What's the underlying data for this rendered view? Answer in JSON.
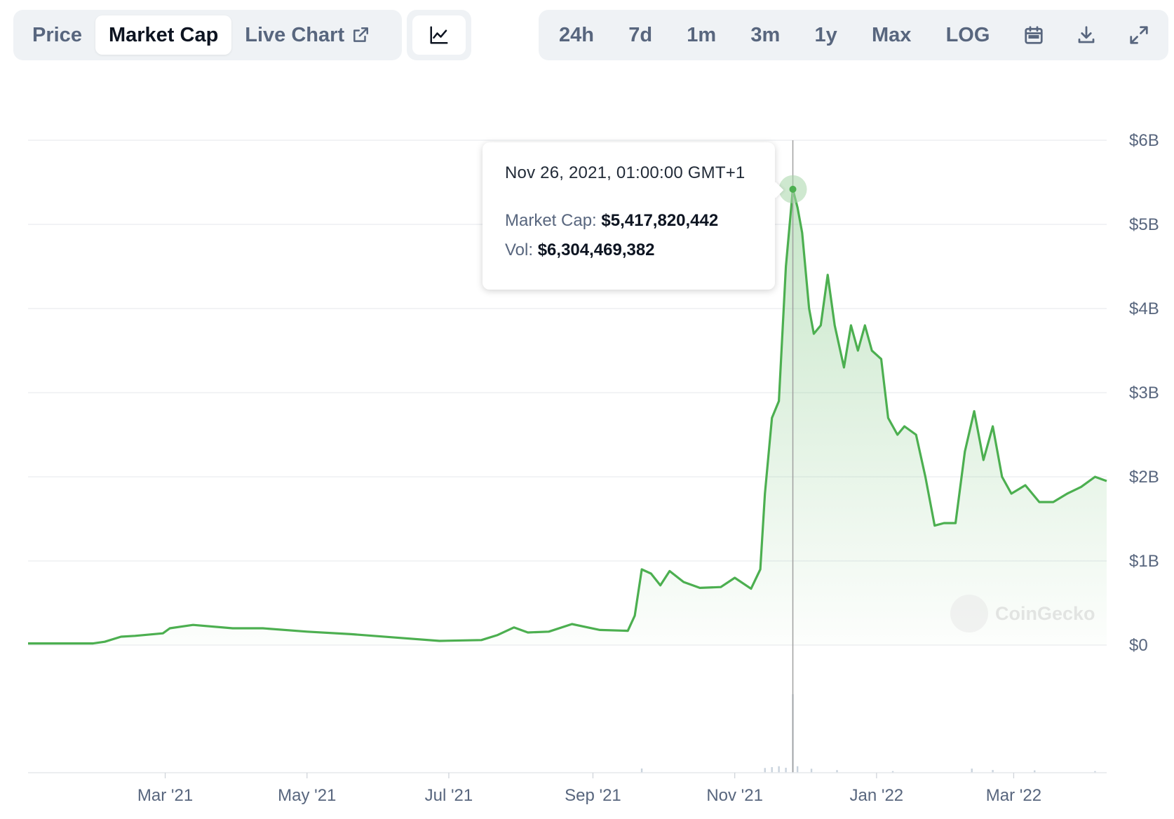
{
  "toolbar": {
    "left_tabs": [
      "Price",
      "Market Cap",
      "Live Chart"
    ],
    "active_tab": "Market Cap",
    "chart_type_icon": "line-chart-icon",
    "external_icon": "external-link-icon",
    "ranges": [
      "24h",
      "7d",
      "1m",
      "3m",
      "1y",
      "Max",
      "LOG"
    ],
    "icons": [
      "calendar-icon",
      "download-icon",
      "expand-icon"
    ]
  },
  "tooltip": {
    "date": "Nov 26, 2021, 01:00:00 GMT+1",
    "market_cap_label": "Market Cap:",
    "market_cap_value": "$5,417,820,442",
    "vol_label": "Vol:",
    "vol_value": "$6,304,469,382"
  },
  "watermark": "CoinGecko",
  "colors": {
    "line": "#4caf50",
    "fill": "#c8e6c9",
    "grid": "#e9ecef",
    "axis_text": "#58667e"
  },
  "chart_data": {
    "type": "area",
    "title": "",
    "xlabel": "",
    "ylabel": "",
    "ylim": [
      0,
      6000000000
    ],
    "xlim": [
      "2021-01-01",
      "2022-04-10"
    ],
    "y_ticks": [
      "$0",
      "$1B",
      "$2B",
      "$3B",
      "$4B",
      "$5B",
      "$6B"
    ],
    "x_ticks": [
      {
        "date": "2021-03-01",
        "label": "Mar '21"
      },
      {
        "date": "2021-05-01",
        "label": "May '21"
      },
      {
        "date": "2021-07-01",
        "label": "Jul '21"
      },
      {
        "date": "2021-09-01",
        "label": "Sep '21"
      },
      {
        "date": "2021-11-01",
        "label": "Nov '21"
      },
      {
        "date": "2022-01-01",
        "label": "Jan '22"
      },
      {
        "date": "2022-03-01",
        "label": "Mar '22"
      }
    ],
    "grid": true,
    "hover": {
      "date": "2021-11-26",
      "value": 5417820442
    },
    "series": [
      {
        "name": "Market Cap",
        "points": [
          [
            "2021-01-01",
            20000000
          ],
          [
            "2021-01-29",
            20000000
          ],
          [
            "2021-02-03",
            40000000
          ],
          [
            "2021-02-10",
            100000000
          ],
          [
            "2021-02-16",
            110000000
          ],
          [
            "2021-02-28",
            140000000
          ],
          [
            "2021-03-03",
            200000000
          ],
          [
            "2021-03-13",
            240000000
          ],
          [
            "2021-03-30",
            200000000
          ],
          [
            "2021-04-12",
            200000000
          ],
          [
            "2021-05-01",
            160000000
          ],
          [
            "2021-05-20",
            130000000
          ],
          [
            "2021-06-08",
            90000000
          ],
          [
            "2021-06-27",
            50000000
          ],
          [
            "2021-07-15",
            60000000
          ],
          [
            "2021-07-22",
            120000000
          ],
          [
            "2021-07-29",
            210000000
          ],
          [
            "2021-08-04",
            150000000
          ],
          [
            "2021-08-13",
            160000000
          ],
          [
            "2021-08-23",
            250000000
          ],
          [
            "2021-09-04",
            180000000
          ],
          [
            "2021-09-16",
            170000000
          ],
          [
            "2021-09-19",
            350000000
          ],
          [
            "2021-09-22",
            900000000
          ],
          [
            "2021-09-26",
            850000000
          ],
          [
            "2021-09-30",
            710000000
          ],
          [
            "2021-10-04",
            880000000
          ],
          [
            "2021-10-10",
            750000000
          ],
          [
            "2021-10-17",
            680000000
          ],
          [
            "2021-10-26",
            690000000
          ],
          [
            "2021-11-01",
            800000000
          ],
          [
            "2021-11-08",
            670000000
          ],
          [
            "2021-11-12",
            900000000
          ],
          [
            "2021-11-14",
            1800000000
          ],
          [
            "2021-11-17",
            2700000000
          ],
          [
            "2021-11-20",
            2900000000
          ],
          [
            "2021-11-23",
            4500000000
          ],
          [
            "2021-11-26",
            5417820442
          ],
          [
            "2021-11-28",
            5200000000
          ],
          [
            "2021-11-30",
            4900000000
          ],
          [
            "2021-12-03",
            4000000000
          ],
          [
            "2021-12-05",
            3700000000
          ],
          [
            "2021-12-08",
            3800000000
          ],
          [
            "2021-12-11",
            4400000000
          ],
          [
            "2021-12-14",
            3800000000
          ],
          [
            "2021-12-18",
            3300000000
          ],
          [
            "2021-12-21",
            3800000000
          ],
          [
            "2021-12-24",
            3500000000
          ],
          [
            "2021-12-27",
            3800000000
          ],
          [
            "2021-12-30",
            3500000000
          ],
          [
            "2022-01-03",
            3400000000
          ],
          [
            "2022-01-06",
            2700000000
          ],
          [
            "2022-01-10",
            2500000000
          ],
          [
            "2022-01-13",
            2600000000
          ],
          [
            "2022-01-18",
            2500000000
          ],
          [
            "2022-01-22",
            2000000000
          ],
          [
            "2022-01-26",
            1420000000
          ],
          [
            "2022-01-30",
            1450000000
          ],
          [
            "2022-02-04",
            1450000000
          ],
          [
            "2022-02-08",
            2300000000
          ],
          [
            "2022-02-12",
            2780000000
          ],
          [
            "2022-02-16",
            2200000000
          ],
          [
            "2022-02-20",
            2600000000
          ],
          [
            "2022-02-24",
            2000000000
          ],
          [
            "2022-02-28",
            1800000000
          ],
          [
            "2022-03-06",
            1900000000
          ],
          [
            "2022-03-12",
            1700000000
          ],
          [
            "2022-03-18",
            1700000000
          ],
          [
            "2022-03-24",
            1800000000
          ],
          [
            "2022-03-30",
            1880000000
          ],
          [
            "2022-04-05",
            2000000000
          ],
          [
            "2022-04-10",
            1950000000
          ]
        ]
      },
      {
        "name": "Vol",
        "points": [
          [
            "2021-09-22",
            340000000
          ],
          [
            "2021-11-14",
            380000000
          ],
          [
            "2021-11-17",
            450000000
          ],
          [
            "2021-11-20",
            520000000
          ],
          [
            "2021-11-23",
            400000000
          ],
          [
            "2021-11-26",
            6304469382
          ],
          [
            "2021-11-28",
            520000000
          ],
          [
            "2021-12-04",
            320000000
          ],
          [
            "2021-12-15",
            210000000
          ],
          [
            "2022-01-08",
            130000000
          ],
          [
            "2022-02-11",
            330000000
          ],
          [
            "2022-02-20",
            220000000
          ],
          [
            "2022-03-10",
            190000000
          ],
          [
            "2022-04-05",
            130000000
          ]
        ]
      }
    ]
  }
}
